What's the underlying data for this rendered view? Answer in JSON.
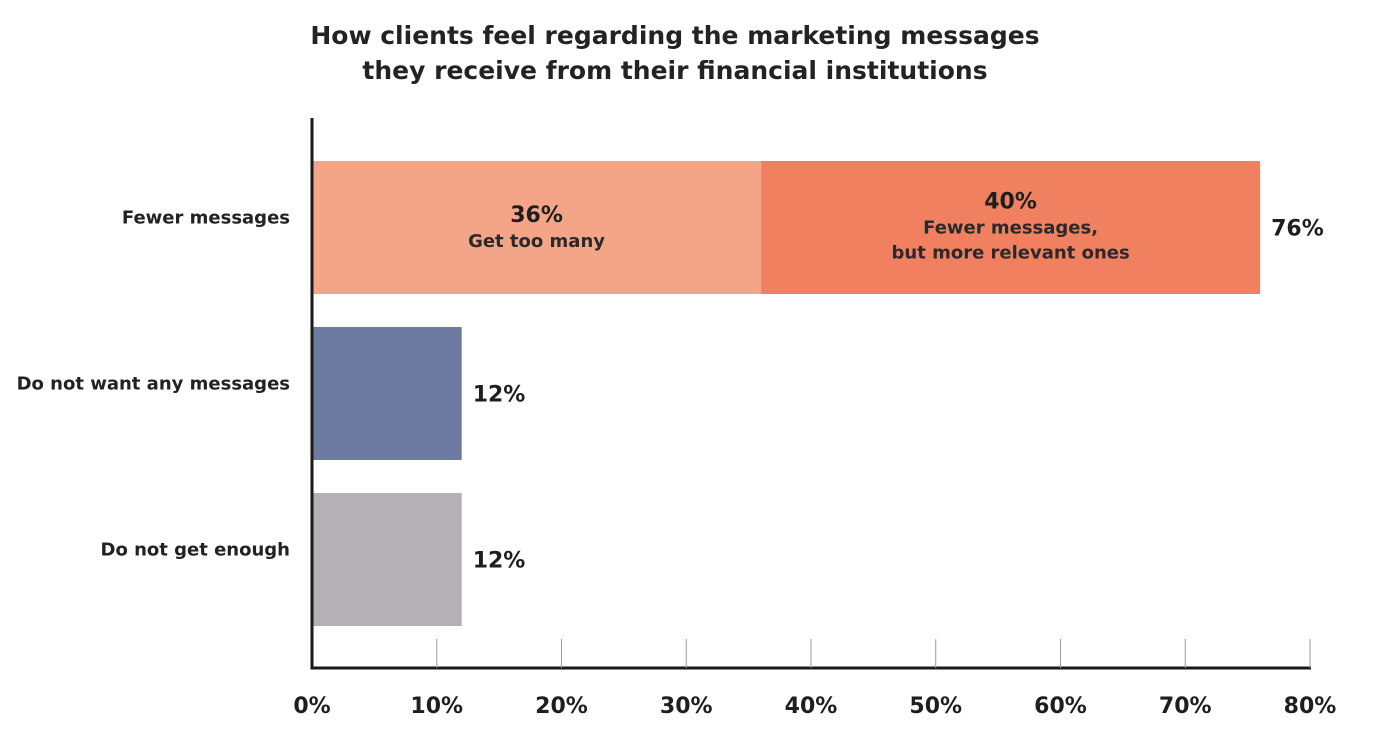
{
  "chart_data": {
    "type": "bar",
    "orientation": "horizontal",
    "stacked": true,
    "title": [
      "How clients feel regarding the marketing messages",
      "they receive from their financial institutions"
    ],
    "categories": [
      "Fewer messages",
      "Do not want any messages",
      "Do not get enough"
    ],
    "bars": [
      {
        "category": "Fewer messages",
        "total_label": "76%",
        "segments": [
          {
            "value": 36,
            "value_label": "36%",
            "text": [
              "Get too many"
            ],
            "color": "#f5a587"
          },
          {
            "value": 40,
            "value_label": "40%",
            "text": [
              "Fewer messages,",
              "but more relevant ones"
            ],
            "color": "#f18060"
          }
        ]
      },
      {
        "category": "Do not want any messages",
        "total_label": "12%",
        "segments": [
          {
            "value": 12,
            "value_label": "",
            "text": [],
            "color": "#6e7ba0"
          }
        ]
      },
      {
        "category": "Do not get enough",
        "total_label": "12%",
        "segments": [
          {
            "value": 12,
            "value_label": "",
            "text": [],
            "color": "#b3b1b4"
          }
        ]
      }
    ],
    "xlim": [
      0,
      80
    ],
    "x_ticks": [
      0,
      10,
      20,
      30,
      40,
      50,
      60,
      70,
      80
    ],
    "x_tick_labels": [
      "0%",
      "10%",
      "20%",
      "30%",
      "40%",
      "50%",
      "60%",
      "70%",
      "80%"
    ],
    "xlabel": "",
    "ylabel": "",
    "grid": false,
    "legend": "none"
  }
}
